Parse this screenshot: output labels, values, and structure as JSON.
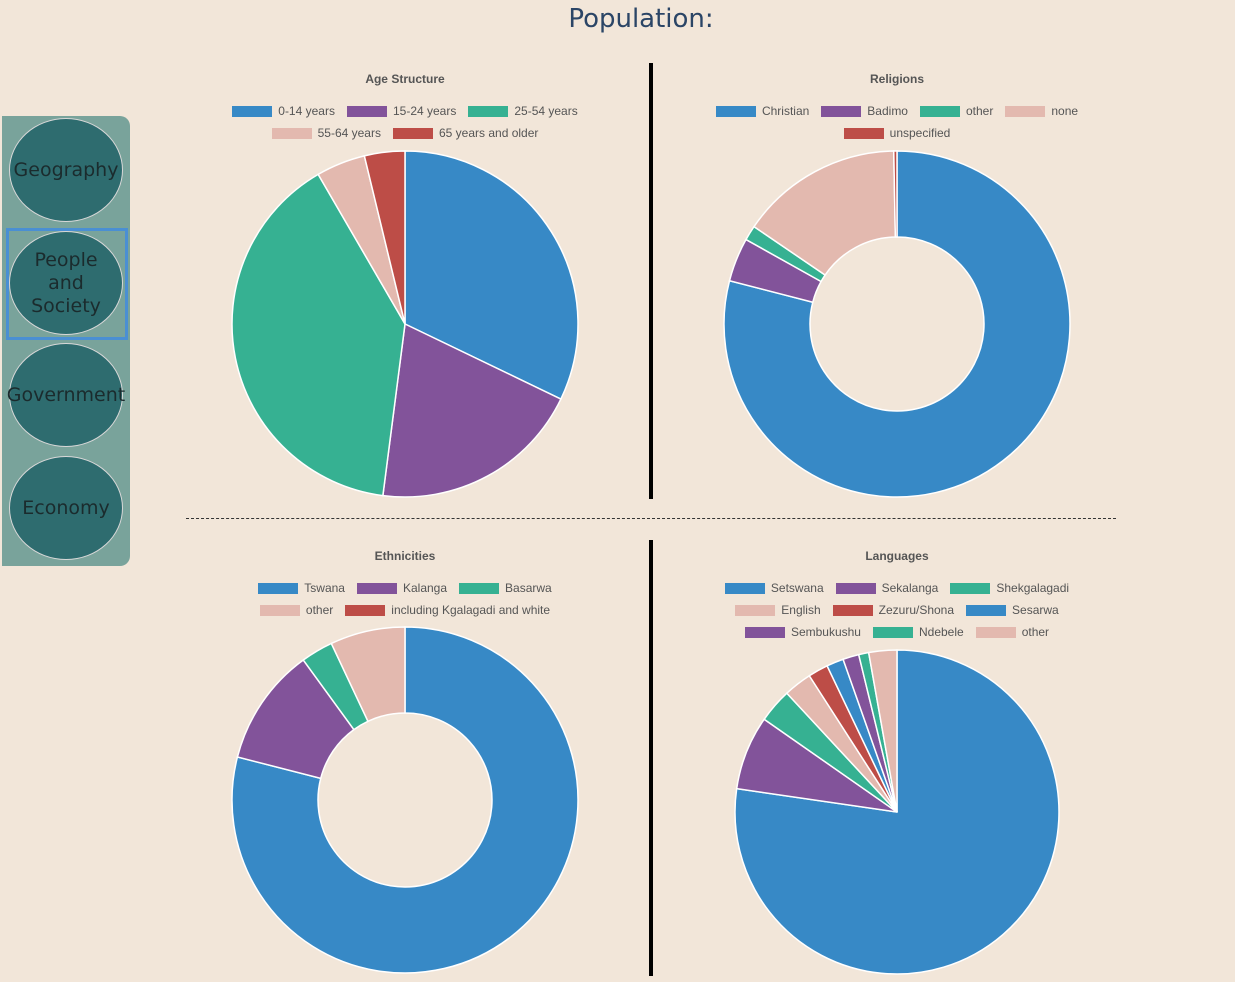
{
  "page": {
    "title": "Population:"
  },
  "sidebar": {
    "items": [
      {
        "label": "Geography"
      },
      {
        "label": "People and Society"
      },
      {
        "label": "Government"
      },
      {
        "label": "Economy"
      }
    ],
    "active_item": "People and Society"
  },
  "colors": {
    "background": "#f2e6d9",
    "sidebar": "#79a39b",
    "nav_button": "#2e6c6f",
    "active_frame": "#4a8fd3",
    "palette": [
      "#3789c6",
      "#82539a",
      "#36b192",
      "#e3b9af",
      "#bd4d47"
    ]
  },
  "chart_data": [
    {
      "type": "pie",
      "title": "Age Structure",
      "legend_placement": "top",
      "categories": [
        "0-14 years",
        "15-24 years",
        "25-54 years",
        "55-64 years",
        "65 years and older"
      ],
      "values": [
        31.5,
        19.5,
        38.8,
        4.5,
        3.7
      ]
    },
    {
      "type": "pie",
      "variant": "doughnut",
      "title": "Religions",
      "legend_placement": "top",
      "categories": [
        "Christian",
        "Badimo",
        "other",
        "none",
        "unspecified"
      ],
      "values": [
        79.1,
        4.1,
        1.4,
        15.2,
        0.3
      ]
    },
    {
      "type": "pie",
      "variant": "doughnut",
      "title": "Ethnicities",
      "legend_placement": "top",
      "categories": [
        "Tswana",
        "Kalanga",
        "Basarwa",
        "other",
        "including Kgalagadi and white"
      ],
      "values": [
        79,
        11,
        3,
        7,
        0
      ]
    },
    {
      "type": "pie",
      "title": "Languages",
      "legend_placement": "top",
      "categories": [
        "Setswana",
        "Sekalanga",
        "Shekgalagadi",
        "English",
        "Zezuru/Shona",
        "Sesarwa",
        "Sembukushu",
        "Ndebele",
        "other"
      ],
      "values": [
        77.3,
        7.4,
        3.4,
        2.8,
        2,
        1.7,
        1.6,
        1,
        2.8
      ]
    }
  ]
}
